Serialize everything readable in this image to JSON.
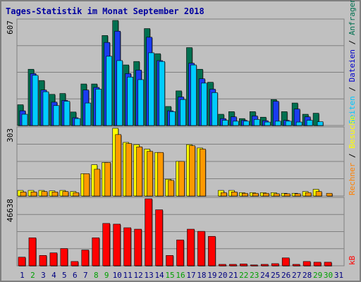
{
  "title": "Tages-Statistik im Monat September 2018",
  "right_legend": {
    "top": [
      {
        "text": "Seiten",
        "color": "#00c8ff"
      },
      {
        "text": " / ",
        "color": "#000000"
      },
      {
        "text": "Dateien",
        "color": "#0000cc"
      },
      {
        "text": " / ",
        "color": "#000000"
      },
      {
        "text": "Anfragen",
        "color": "#007050"
      }
    ],
    "middle": [
      {
        "text": "Rechner",
        "color": "#ff8000"
      },
      {
        "text": " / ",
        "color": "#000000"
      },
      {
        "text": "Besuche",
        "color": "#ffff00"
      }
    ],
    "bottom": [
      {
        "text": "kB",
        "color": "#ff0000"
      }
    ]
  },
  "colors": {
    "anfragen": "#007050",
    "dateien": "#1a3cf0",
    "seiten": "#00ccff",
    "besuche": "#ffff00",
    "rechner": "#ff9900",
    "kb": "#ff0000",
    "weekend_day": "#00a000",
    "weekday": "#000080"
  },
  "chart_data": [
    {
      "type": "bar",
      "title": "Tages-Statistik im Monat September 2018",
      "ylabel": "607",
      "ylim": [
        0,
        607
      ],
      "categories": [
        "1",
        "2",
        "3",
        "4",
        "5",
        "6",
        "7",
        "8",
        "9",
        "10",
        "11",
        "12",
        "13",
        "14",
        "15",
        "16",
        "17",
        "18",
        "19",
        "20",
        "21",
        "22",
        "23",
        "24",
        "25",
        "26",
        "27",
        "28",
        "29",
        "30",
        "31"
      ],
      "series": [
        {
          "name": "Anfragen",
          "values": [
            120,
            325,
            260,
            180,
            185,
            78,
            240,
            240,
            520,
            607,
            350,
            370,
            560,
            415,
            110,
            200,
            450,
            325,
            250,
            65,
            80,
            40,
            80,
            48,
            150,
            80,
            130,
            65,
            71,
            0,
            0
          ]
        },
        {
          "name": "Dateien",
          "values": [
            85,
            300,
            205,
            135,
            145,
            45,
            205,
            220,
            480,
            545,
            300,
            320,
            510,
            375,
            85,
            165,
            360,
            270,
            210,
            40,
            50,
            30,
            55,
            28,
            140,
            30,
            95,
            50,
            0,
            0,
            0
          ]
        },
        {
          "name": "Seiten",
          "values": [
            65,
            290,
            195,
            115,
            140,
            40,
            130,
            210,
            400,
            375,
            280,
            265,
            420,
            370,
            80,
            150,
            350,
            245,
            190,
            30,
            25,
            25,
            35,
            20,
            25,
            25,
            20,
            30,
            22,
            0,
            0
          ]
        }
      ]
    },
    {
      "type": "bar",
      "ylabel": "303",
      "ylim": [
        0,
        303
      ],
      "categories": [
        "1",
        "2",
        "3",
        "4",
        "5",
        "6",
        "7",
        "8",
        "9",
        "10",
        "11",
        "12",
        "13",
        "14",
        "15",
        "16",
        "17",
        "18",
        "19",
        "20",
        "21",
        "22",
        "23",
        "24",
        "25",
        "26",
        "27",
        "28",
        "29",
        "30",
        "31"
      ],
      "series": [
        {
          "name": "Besuche",
          "values": [
            25,
            25,
            25,
            23,
            25,
            20,
            100,
            140,
            150,
            303,
            240,
            230,
            210,
            195,
            75,
            155,
            230,
            215,
            0,
            25,
            25,
            15,
            15,
            15,
            15,
            12,
            12,
            20,
            30,
            0,
            0
          ]
        },
        {
          "name": "Rechner",
          "values": [
            18,
            18,
            20,
            18,
            20,
            15,
            100,
            120,
            150,
            275,
            235,
            220,
            200,
            195,
            70,
            155,
            225,
            210,
            0,
            15,
            18,
            12,
            12,
            12,
            10,
            10,
            10,
            15,
            20,
            12,
            0
          ]
        }
      ]
    },
    {
      "type": "bar",
      "ylabel": "46638",
      "ylim": [
        0,
        46638
      ],
      "categories": [
        "1",
        "2",
        "3",
        "4",
        "5",
        "6",
        "7",
        "8",
        "9",
        "10",
        "11",
        "12",
        "13",
        "14",
        "15",
        "16",
        "17",
        "18",
        "19",
        "20",
        "21",
        "22",
        "23",
        "24",
        "25",
        "26",
        "27",
        "28",
        "29",
        "30",
        "31"
      ],
      "series": [
        {
          "name": "kB",
          "values": [
            6000,
            19500,
            7200,
            9000,
            12000,
            3000,
            11000,
            19500,
            29500,
            29000,
            26500,
            25500,
            46638,
            39000,
            7200,
            18000,
            25500,
            24000,
            20500,
            1000,
            1000,
            1300,
            600,
            1000,
            1500,
            5500,
            1000,
            3000,
            2500,
            2500,
            0
          ]
        }
      ]
    }
  ],
  "weekend_days": [
    "2",
    "8",
    "9",
    "15",
    "16",
    "22",
    "23",
    "29",
    "30"
  ]
}
